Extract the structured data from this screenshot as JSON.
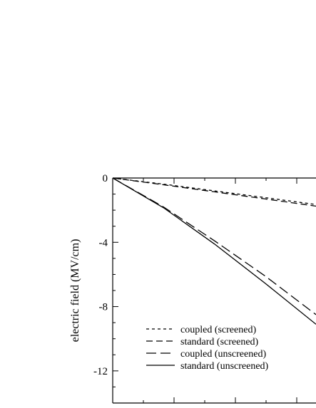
{
  "chart_data": {
    "type": "line",
    "title": "",
    "xlabel": "",
    "ylabel": "electric field (MV/cm)",
    "ylim": [
      -14,
      0
    ],
    "y_ticks": [
      0,
      -4,
      -8,
      -12
    ],
    "y_tick_labels": [
      "0",
      "-4",
      "-8",
      "-12"
    ],
    "legend_position": "bottom-left",
    "series": [
      {
        "name": "coupled (screened)",
        "dash": "short-dash",
        "color": "#000000",
        "x": [
          0,
          0.25,
          0.5,
          0.75,
          1.0
        ],
        "y": [
          0,
          -0.38,
          -0.8,
          -1.22,
          -1.65
        ]
      },
      {
        "name": "standard (screened)",
        "dash": "medium-dash",
        "color": "#000000",
        "x": [
          0,
          0.25,
          0.5,
          0.75,
          1.0
        ],
        "y": [
          0,
          -0.42,
          -0.86,
          -1.3,
          -1.75
        ]
      },
      {
        "name": "coupled (unscreened)",
        "dash": "long-dash",
        "color": "#000000",
        "x": [
          0,
          0.25,
          0.5,
          0.75,
          1.0
        ],
        "y": [
          0,
          -1.8,
          -3.9,
          -6.1,
          -8.5
        ]
      },
      {
        "name": "standard (unscreened)",
        "dash": "solid",
        "color": "#000000",
        "x": [
          0,
          0.25,
          0.5,
          0.75,
          1.0
        ],
        "y": [
          0,
          -1.85,
          -4.1,
          -6.55,
          -9.1
        ]
      }
    ]
  }
}
